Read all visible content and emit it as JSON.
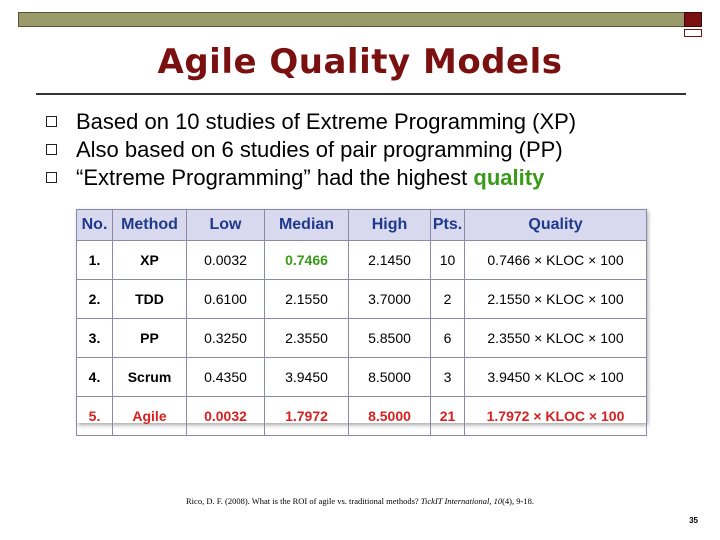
{
  "slide": {
    "title": "Agile Quality Models",
    "bullets": [
      {
        "text": "Based on 10 studies of Extreme Programming (XP)"
      },
      {
        "text": "Also based on 6 studies of pair programming (PP)"
      },
      {
        "text_prefix": "“Extreme Programming” had the highest ",
        "highlight": "quality"
      }
    ],
    "page_number": "35",
    "colors": {
      "title": "#7a1010",
      "highlight_green": "#3a9a1a",
      "agile_red": "#d82020",
      "header_text": "#1f3a8a",
      "header_bg": "#d8d8ee"
    }
  },
  "table": {
    "headers": [
      "No.",
      "Method",
      "Low",
      "Median",
      "High",
      "Pts.",
      "Quality"
    ],
    "rows": [
      [
        "1.",
        "XP",
        "0.0032",
        "0.7466",
        "2.1450",
        "10",
        "0.7466 × KLOC × 100"
      ],
      [
        "2.",
        "TDD",
        "0.6100",
        "2.1550",
        "3.7000",
        "2",
        "2.1550 × KLOC × 100"
      ],
      [
        "3.",
        "PP",
        "0.3250",
        "2.3550",
        "5.8500",
        "6",
        "2.3550 × KLOC × 100"
      ],
      [
        "4.",
        "Scrum",
        "0.4350",
        "3.9450",
        "8.5000",
        "3",
        "3.9450 × KLOC × 100"
      ],
      [
        "5.",
        "Agile",
        "0.0032",
        "1.7972",
        "8.5000",
        "21",
        "1.7972 × KLOC × 100"
      ]
    ]
  },
  "citation": {
    "prefix": "Rico, D. F. (2008). What is the ROI of agile vs. traditional methods? ",
    "journal": "TickIT International",
    "volume": "10",
    "suffix": "(4), 9-18."
  }
}
